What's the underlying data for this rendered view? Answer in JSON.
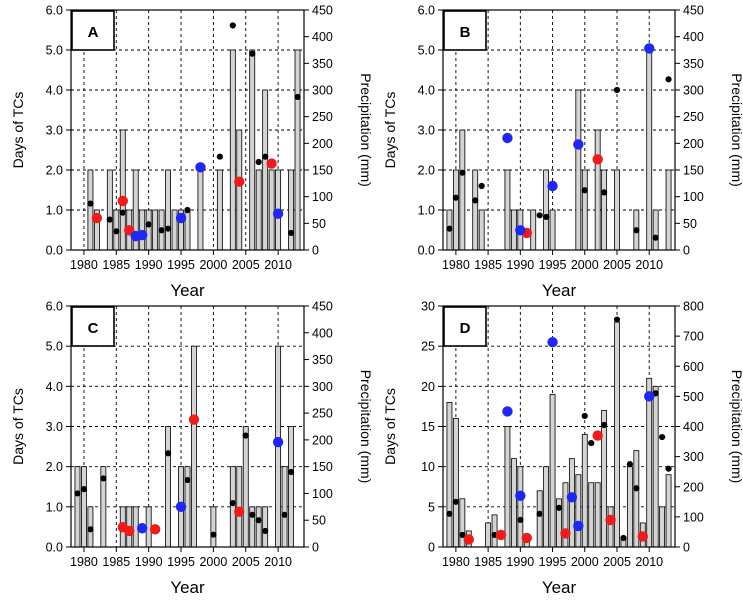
{
  "chart_data": [
    {
      "type": "bar",
      "panel_label": "A",
      "xlabel": "Year",
      "ylabel_left": "Days of TCs",
      "ylabel_right": "Precipitation (mm)",
      "xlim": [
        1978,
        2014
      ],
      "xticks": [
        1980,
        1985,
        1990,
        1995,
        2000,
        2005,
        2010
      ],
      "ylim_left": [
        0,
        6
      ],
      "yticks_left": [
        "0.0",
        "1.0",
        "2.0",
        "3.0",
        "4.0",
        "5.0",
        "6.0"
      ],
      "ylim_right": [
        0,
        450
      ],
      "yticks_right": [
        "0",
        "50",
        "100",
        "150",
        "200",
        "250",
        "300",
        "350",
        "400",
        "450"
      ],
      "grid": true,
      "bars": {
        "name": "Days of TCs",
        "years": [
          1981,
          1982,
          1984,
          1985,
          1986,
          1987,
          1988,
          1989,
          1990,
          1991,
          1992,
          1993,
          1994,
          1995,
          1996,
          1998,
          2001,
          2003,
          2004,
          2006,
          2007,
          2008,
          2009,
          2010,
          2012,
          2013
        ],
        "values": [
          2,
          1,
          2,
          1,
          3,
          1,
          2,
          1,
          1,
          1,
          1,
          2,
          1,
          1,
          1,
          2,
          2,
          5,
          3,
          5,
          2,
          4,
          2,
          2,
          2,
          5
        ]
      },
      "points": [
        {
          "name": "Precipitation",
          "color": "#000000",
          "years": [
            1981,
            1984,
            1985,
            1986,
            1987,
            1988,
            1990,
            1992,
            1993,
            1996,
            2001,
            2003,
            2006,
            2007,
            2008,
            2012,
            2013
          ],
          "values": [
            87,
            57,
            35,
            70,
            37,
            28,
            48,
            37,
            40,
            75,
            175,
            421,
            368,
            165,
            175,
            32,
            287
          ]
        },
        {
          "name": "Precipitation (red)",
          "color": "#ee1c1c",
          "years": [
            1982,
            1986,
            1987,
            2004,
            2009
          ],
          "values": [
            60,
            92,
            37,
            128,
            162
          ]
        },
        {
          "name": "Precipitation (blue)",
          "color": "#1e28f0",
          "years": [
            1988,
            1989,
            1995,
            1998,
            2010
          ],
          "values": [
            26,
            28,
            60,
            155,
            68
          ]
        }
      ]
    },
    {
      "type": "bar",
      "panel_label": "B",
      "xlabel": "Year",
      "ylabel_left": "Days of TCs",
      "ylabel_right": "Precipitation (mm)",
      "xlim": [
        1978,
        2014
      ],
      "xticks": [
        1980,
        1985,
        1990,
        1995,
        2000,
        2005,
        2010
      ],
      "ylim_left": [
        0,
        6
      ],
      "yticks_left": [
        "0.0",
        "1.0",
        "2.0",
        "3.0",
        "4.0",
        "5.0",
        "6.0"
      ],
      "ylim_right": [
        0,
        450
      ],
      "yticks_right": [
        "0",
        "50",
        "100",
        "150",
        "200",
        "250",
        "300",
        "350",
        "400",
        "450"
      ],
      "grid": true,
      "bars": {
        "name": "Days of TCs",
        "years": [
          1979,
          1980,
          1981,
          1983,
          1984,
          1988,
          1989,
          1990,
          1992,
          1994,
          1995,
          1999,
          2000,
          2002,
          2003,
          2005,
          2008,
          2010,
          2011,
          2013
        ],
        "values": [
          1,
          2,
          3,
          2,
          1,
          2,
          1,
          1,
          1,
          2,
          1,
          4,
          2,
          3,
          2,
          2,
          1,
          5,
          1,
          2
        ]
      },
      "points": [
        {
          "name": "Precipitation",
          "color": "#000000",
          "years": [
            1979,
            1980,
            1981,
            1983,
            1984,
            1993,
            1994,
            2000,
            2003,
            2005,
            2008,
            2011,
            2013
          ],
          "values": [
            40,
            98,
            145,
            93,
            120,
            65,
            62,
            112,
            108,
            300,
            37,
            23,
            320
          ]
        },
        {
          "name": "Precipitation (red)",
          "color": "#ee1c1c",
          "years": [
            1991,
            2002
          ],
          "values": [
            32,
            170
          ]
        },
        {
          "name": "Precipitation (blue)",
          "color": "#1e28f0",
          "years": [
            1988,
            1990,
            1995,
            1999,
            2010
          ],
          "values": [
            210,
            37,
            120,
            198,
            378
          ]
        }
      ]
    },
    {
      "type": "bar",
      "panel_label": "C",
      "xlabel": "Year",
      "ylabel_left": "Days of TCs",
      "ylabel_right": "Precipitation (mm)",
      "xlim": [
        1978,
        2014
      ],
      "xticks": [
        1980,
        1985,
        1990,
        1995,
        2000,
        2005,
        2010
      ],
      "ylim_left": [
        0,
        6
      ],
      "yticks_left": [
        "0.0",
        "1.0",
        "2.0",
        "3.0",
        "4.0",
        "5.0",
        "6.0"
      ],
      "ylim_right": [
        0,
        450
      ],
      "yticks_right": [
        "0",
        "50",
        "100",
        "150",
        "200",
        "250",
        "300",
        "350",
        "400",
        "450"
      ],
      "grid": true,
      "bars": {
        "name": "Days of TCs",
        "years": [
          1979,
          1980,
          1981,
          1983,
          1986,
          1987,
          1988,
          1990,
          1993,
          1995,
          1996,
          1997,
          2000,
          2003,
          2004,
          2005,
          2006,
          2007,
          2008,
          2010,
          2011,
          2012
        ],
        "values": [
          2,
          2,
          1,
          2,
          1,
          1,
          1,
          1,
          3,
          2,
          2,
          5,
          1,
          2,
          2,
          3,
          1,
          1,
          1,
          5,
          2,
          3
        ]
      },
      "points": [
        {
          "name": "Precipitation",
          "color": "#000000",
          "years": [
            1979,
            1980,
            1981,
            1983,
            1993,
            1996,
            2000,
            2003,
            2005,
            2006,
            2007,
            2008,
            2011,
            2012
          ],
          "values": [
            100,
            108,
            33,
            128,
            175,
            125,
            23,
            82,
            208,
            60,
            50,
            30,
            60,
            140
          ]
        },
        {
          "name": "Precipitation (red)",
          "color": "#ee1c1c",
          "years": [
            1986,
            1987,
            1991,
            1997,
            2004
          ],
          "values": [
            37,
            30,
            33,
            238,
            66
          ]
        },
        {
          "name": "Precipitation (blue)",
          "color": "#1e28f0",
          "years": [
            1989,
            1995,
            2010
          ],
          "values": [
            35,
            75,
            196
          ]
        }
      ]
    },
    {
      "type": "bar",
      "panel_label": "D",
      "xlabel": "Year",
      "ylabel_left": "Days of TCs",
      "ylabel_right": "Precipitation (mm)",
      "xlim": [
        1978,
        2014
      ],
      "xticks": [
        1980,
        1985,
        1990,
        1995,
        2000,
        2005,
        2010
      ],
      "ylim_left": [
        0,
        30
      ],
      "yticks_left": [
        "0",
        "5",
        "10",
        "15",
        "20",
        "25",
        "30"
      ],
      "ylim_right": [
        0,
        800
      ],
      "yticks_right": [
        "0",
        "100",
        "200",
        "300",
        "400",
        "500",
        "600",
        "700",
        "800"
      ],
      "grid": true,
      "bars": {
        "name": "Days of TCs",
        "years": [
          1979,
          1980,
          1981,
          1982,
          1985,
          1986,
          1988,
          1989,
          1990,
          1991,
          1993,
          1994,
          1995,
          1996,
          1997,
          1998,
          1999,
          2000,
          2001,
          2002,
          2003,
          2004,
          2005,
          2006,
          2007,
          2008,
          2009,
          2010,
          2011,
          2012,
          2013
        ],
        "values": [
          18,
          16,
          6,
          2,
          3,
          4,
          15,
          11,
          10,
          1,
          7,
          10,
          19,
          6,
          8,
          11,
          9,
          14,
          8,
          8,
          17,
          5,
          28,
          1,
          10,
          12,
          3,
          21,
          20,
          5,
          9
        ]
      },
      "points": [
        {
          "name": "Precipitation",
          "color": "#000000",
          "years": [
            1979,
            1980,
            1981,
            1986,
            1990,
            1993,
            1996,
            1998,
            2000,
            2001,
            2003,
            2005,
            2006,
            2007,
            2008,
            2011,
            2012,
            2013
          ],
          "values": [
            110,
            150,
            40,
            40,
            90,
            110,
            130,
            170,
            435,
            345,
            405,
            755,
            30,
            275,
            195,
            510,
            365,
            260
          ]
        },
        {
          "name": "Precipitation (red)",
          "color": "#ee1c1c",
          "years": [
            1982,
            1987,
            1991,
            1997,
            2002,
            2004,
            2009
          ],
          "values": [
            25,
            40,
            30,
            45,
            370,
            90,
            35
          ]
        },
        {
          "name": "Precipitation (blue)",
          "color": "#1e28f0",
          "years": [
            1988,
            1990,
            1995,
            1998,
            1999,
            2010
          ],
          "values": [
            450,
            170,
            680,
            165,
            70,
            500
          ]
        }
      ]
    }
  ]
}
